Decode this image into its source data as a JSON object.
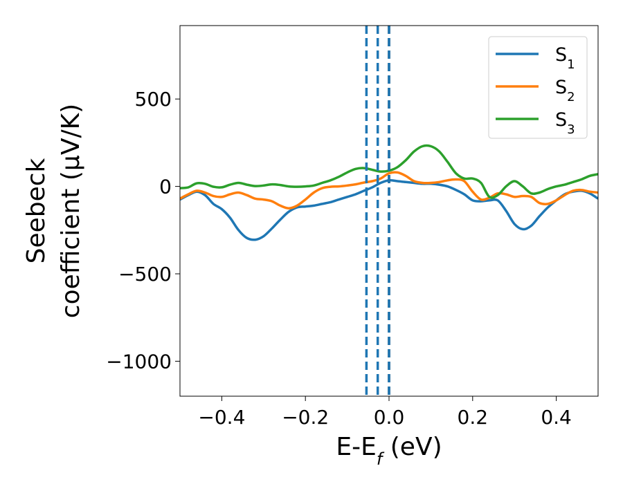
{
  "chart_data": {
    "type": "line",
    "xlabel_main": "E-E",
    "xlabel_sub": "f",
    "xlabel_unit": " (eV)",
    "ylabel_line1": "Seebeck",
    "ylabel_line2": "coefficient  (μV/K)",
    "xlim": [
      -0.5,
      0.5
    ],
    "ylim": [
      -1200,
      920
    ],
    "x_ticks": [
      {
        "value": -0.4,
        "label": "−0.4"
      },
      {
        "value": -0.2,
        "label": "−0.2"
      },
      {
        "value": 0.0,
        "label": "0.0"
      },
      {
        "value": 0.2,
        "label": "0.2"
      },
      {
        "value": 0.4,
        "label": "0.4"
      }
    ],
    "y_ticks": [
      {
        "value": 500,
        "label": "500"
      },
      {
        "value": 0,
        "label": "0"
      },
      {
        "value": -500,
        "label": "−500"
      },
      {
        "value": -1000,
        "label": "−1000"
      }
    ],
    "vlines": [
      {
        "x": -0.054,
        "color": "#1f77b4",
        "style": "dashed"
      },
      {
        "x": -0.027,
        "color": "#1f77b4",
        "style": "dashed"
      },
      {
        "x": 0.0,
        "color": "#000000",
        "style": "dashed"
      },
      {
        "x": 0.0,
        "color": "#1f77b4",
        "style": "dashed"
      }
    ],
    "legend_position": "top-right",
    "series": [
      {
        "name": "S",
        "subscript": "1",
        "color": "#1f77b4",
        "points": [
          [
            -0.5,
            -75
          ],
          [
            -0.48,
            -50
          ],
          [
            -0.46,
            -30
          ],
          [
            -0.44,
            -50
          ],
          [
            -0.42,
            -100
          ],
          [
            -0.4,
            -130
          ],
          [
            -0.38,
            -180
          ],
          [
            -0.36,
            -250
          ],
          [
            -0.34,
            -295
          ],
          [
            -0.32,
            -305
          ],
          [
            -0.3,
            -285
          ],
          [
            -0.28,
            -240
          ],
          [
            -0.26,
            -190
          ],
          [
            -0.24,
            -145
          ],
          [
            -0.22,
            -120
          ],
          [
            -0.2,
            -115
          ],
          [
            -0.18,
            -110
          ],
          [
            -0.16,
            -100
          ],
          [
            -0.14,
            -90
          ],
          [
            -0.12,
            -75
          ],
          [
            -0.1,
            -60
          ],
          [
            -0.08,
            -45
          ],
          [
            -0.06,
            -25
          ],
          [
            -0.04,
            -5
          ],
          [
            -0.02,
            20
          ],
          [
            0.0,
            35
          ],
          [
            0.02,
            30
          ],
          [
            0.04,
            25
          ],
          [
            0.06,
            20
          ],
          [
            0.08,
            15
          ],
          [
            0.1,
            15
          ],
          [
            0.12,
            10
          ],
          [
            0.14,
            0
          ],
          [
            0.16,
            -20
          ],
          [
            0.18,
            -45
          ],
          [
            0.2,
            -80
          ],
          [
            0.22,
            -85
          ],
          [
            0.24,
            -80
          ],
          [
            0.26,
            -80
          ],
          [
            0.28,
            -140
          ],
          [
            0.3,
            -215
          ],
          [
            0.32,
            -245
          ],
          [
            0.34,
            -225
          ],
          [
            0.36,
            -170
          ],
          [
            0.38,
            -120
          ],
          [
            0.4,
            -80
          ],
          [
            0.42,
            -45
          ],
          [
            0.44,
            -30
          ],
          [
            0.46,
            -25
          ],
          [
            0.48,
            -40
          ],
          [
            0.5,
            -70
          ]
        ]
      },
      {
        "name": "S",
        "subscript": "2",
        "color": "#ff7f0e",
        "points": [
          [
            -0.5,
            -70
          ],
          [
            -0.48,
            -45
          ],
          [
            -0.46,
            -25
          ],
          [
            -0.44,
            -35
          ],
          [
            -0.42,
            -55
          ],
          [
            -0.4,
            -60
          ],
          [
            -0.38,
            -45
          ],
          [
            -0.36,
            -35
          ],
          [
            -0.34,
            -50
          ],
          [
            -0.32,
            -70
          ],
          [
            -0.3,
            -75
          ],
          [
            -0.28,
            -85
          ],
          [
            -0.26,
            -110
          ],
          [
            -0.24,
            -125
          ],
          [
            -0.22,
            -110
          ],
          [
            -0.2,
            -75
          ],
          [
            -0.18,
            -35
          ],
          [
            -0.16,
            -10
          ],
          [
            -0.14,
            -2
          ],
          [
            -0.12,
            0
          ],
          [
            -0.1,
            5
          ],
          [
            -0.08,
            12
          ],
          [
            -0.06,
            22
          ],
          [
            -0.04,
            30
          ],
          [
            -0.02,
            45
          ],
          [
            0.0,
            75
          ],
          [
            0.02,
            80
          ],
          [
            0.04,
            60
          ],
          [
            0.06,
            30
          ],
          [
            0.08,
            20
          ],
          [
            0.1,
            20
          ],
          [
            0.12,
            25
          ],
          [
            0.14,
            35
          ],
          [
            0.16,
            40
          ],
          [
            0.18,
            30
          ],
          [
            0.2,
            -30
          ],
          [
            0.22,
            -75
          ],
          [
            0.24,
            -65
          ],
          [
            0.26,
            -40
          ],
          [
            0.28,
            -45
          ],
          [
            0.3,
            -60
          ],
          [
            0.32,
            -55
          ],
          [
            0.34,
            -60
          ],
          [
            0.36,
            -95
          ],
          [
            0.38,
            -100
          ],
          [
            0.4,
            -80
          ],
          [
            0.42,
            -50
          ],
          [
            0.44,
            -25
          ],
          [
            0.46,
            -20
          ],
          [
            0.48,
            -30
          ],
          [
            0.5,
            -35
          ]
        ]
      },
      {
        "name": "S",
        "subscript": "3",
        "color": "#2ca02c",
        "points": [
          [
            -0.5,
            -10
          ],
          [
            -0.48,
            -5
          ],
          [
            -0.46,
            18
          ],
          [
            -0.44,
            15
          ],
          [
            -0.42,
            -2
          ],
          [
            -0.4,
            -5
          ],
          [
            -0.38,
            10
          ],
          [
            -0.36,
            20
          ],
          [
            -0.34,
            10
          ],
          [
            -0.32,
            2
          ],
          [
            -0.3,
            5
          ],
          [
            -0.28,
            12
          ],
          [
            -0.26,
            8
          ],
          [
            -0.24,
            0
          ],
          [
            -0.22,
            -2
          ],
          [
            -0.2,
            0
          ],
          [
            -0.18,
            5
          ],
          [
            -0.16,
            20
          ],
          [
            -0.14,
            35
          ],
          [
            -0.12,
            55
          ],
          [
            -0.1,
            80
          ],
          [
            -0.08,
            100
          ],
          [
            -0.06,
            105
          ],
          [
            -0.04,
            95
          ],
          [
            -0.02,
            85
          ],
          [
            0.0,
            90
          ],
          [
            0.02,
            110
          ],
          [
            0.04,
            150
          ],
          [
            0.06,
            200
          ],
          [
            0.08,
            230
          ],
          [
            0.1,
            230
          ],
          [
            0.12,
            200
          ],
          [
            0.14,
            140
          ],
          [
            0.16,
            75
          ],
          [
            0.18,
            45
          ],
          [
            0.2,
            45
          ],
          [
            0.22,
            20
          ],
          [
            0.24,
            -60
          ],
          [
            0.26,
            -50
          ],
          [
            0.28,
            0
          ],
          [
            0.3,
            30
          ],
          [
            0.32,
            0
          ],
          [
            0.34,
            -40
          ],
          [
            0.36,
            -35
          ],
          [
            0.38,
            -15
          ],
          [
            0.4,
            0
          ],
          [
            0.42,
            10
          ],
          [
            0.44,
            25
          ],
          [
            0.46,
            40
          ],
          [
            0.48,
            60
          ],
          [
            0.5,
            70
          ]
        ]
      }
    ]
  }
}
